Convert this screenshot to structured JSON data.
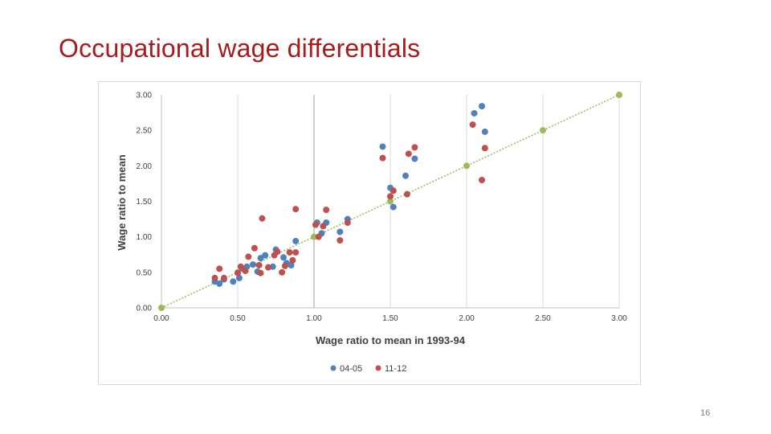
{
  "slide": {
    "title": "Occupational wage differentials",
    "page_number": "16"
  },
  "colors": {
    "title": "#a61c1c",
    "series_04_05": "#4f81bd",
    "series_11_12": "#c0504d",
    "reference": "#9bbb59"
  },
  "chart_data": {
    "type": "scatter",
    "title": "",
    "xlabel": "Wage ratio to mean in 1993-94",
    "ylabel": "Wage ratio to mean",
    "xlim": [
      0,
      3
    ],
    "ylim": [
      0,
      3
    ],
    "x_ticks": [
      "0.00",
      "0.50",
      "1.00",
      "1.50",
      "2.00",
      "2.50",
      "3.00"
    ],
    "y_ticks": [
      "0.00",
      "0.50",
      "1.00",
      "1.50",
      "2.00",
      "2.50",
      "3.00"
    ],
    "grid": "vertical",
    "legend_position": "bottom",
    "series": [
      {
        "name": "04-05",
        "color": "#4f81bd",
        "points": [
          [
            0.35,
            0.37
          ],
          [
            0.38,
            0.34
          ],
          [
            0.41,
            0.4
          ],
          [
            0.47,
            0.37
          ],
          [
            0.51,
            0.42
          ],
          [
            0.53,
            0.55
          ],
          [
            0.56,
            0.58
          ],
          [
            0.6,
            0.61
          ],
          [
            0.63,
            0.51
          ],
          [
            0.65,
            0.7
          ],
          [
            0.68,
            0.74
          ],
          [
            0.73,
            0.58
          ],
          [
            0.75,
            0.82
          ],
          [
            0.8,
            0.71
          ],
          [
            0.82,
            0.63
          ],
          [
            0.85,
            0.6
          ],
          [
            0.88,
            0.94
          ],
          [
            1.02,
            1.2
          ],
          [
            1.05,
            1.05
          ],
          [
            1.08,
            1.2
          ],
          [
            1.17,
            1.07
          ],
          [
            1.22,
            1.25
          ],
          [
            1.45,
            2.27
          ],
          [
            1.5,
            1.69
          ],
          [
            1.52,
            1.42
          ],
          [
            1.6,
            1.86
          ],
          [
            1.66,
            2.1
          ],
          [
            2.05,
            2.74
          ],
          [
            2.1,
            2.84
          ],
          [
            2.12,
            2.48
          ]
        ]
      },
      {
        "name": "11-12",
        "color": "#c0504d",
        "points": [
          [
            0.35,
            0.42
          ],
          [
            0.38,
            0.55
          ],
          [
            0.41,
            0.42
          ],
          [
            0.5,
            0.49
          ],
          [
            0.52,
            0.58
          ],
          [
            0.55,
            0.52
          ],
          [
            0.57,
            0.72
          ],
          [
            0.61,
            0.84
          ],
          [
            0.64,
            0.6
          ],
          [
            0.65,
            0.49
          ],
          [
            0.66,
            1.26
          ],
          [
            0.7,
            0.57
          ],
          [
            0.74,
            0.74
          ],
          [
            0.76,
            0.79
          ],
          [
            0.79,
            0.5
          ],
          [
            0.81,
            0.59
          ],
          [
            0.84,
            0.78
          ],
          [
            0.86,
            0.67
          ],
          [
            0.88,
            0.78
          ],
          [
            0.88,
            1.39
          ],
          [
            1.01,
            1.17
          ],
          [
            1.03,
            1.0
          ],
          [
            1.06,
            1.15
          ],
          [
            1.08,
            1.38
          ],
          [
            1.17,
            0.95
          ],
          [
            1.22,
            1.2
          ],
          [
            1.45,
            2.11
          ],
          [
            1.5,
            1.57
          ],
          [
            1.52,
            1.65
          ],
          [
            1.61,
            1.6
          ],
          [
            1.62,
            2.17
          ],
          [
            1.66,
            2.26
          ],
          [
            2.04,
            2.58
          ],
          [
            2.1,
            1.8
          ],
          [
            2.12,
            2.25
          ]
        ]
      },
      {
        "name": "",
        "color": "#9bbb59",
        "style": "reference-line",
        "points": [
          [
            0,
            0
          ],
          [
            0.5,
            0.5
          ],
          [
            1,
            1
          ],
          [
            1.5,
            1.5
          ],
          [
            2,
            2
          ],
          [
            2.5,
            2.5
          ],
          [
            3,
            3
          ]
        ]
      }
    ],
    "legend": [
      "04-05",
      "11-12"
    ]
  }
}
